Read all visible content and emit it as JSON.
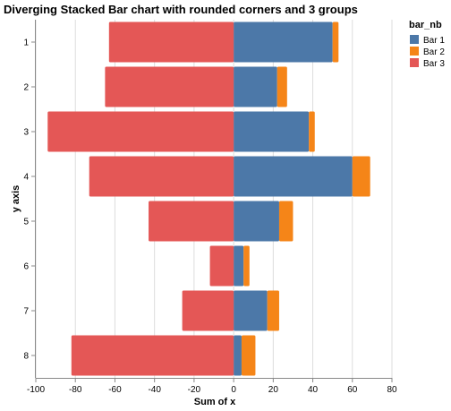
{
  "chart_data": {
    "type": "bar",
    "orientation": "horizontal",
    "stacked": "diverging",
    "title": "Diverging Stacked Bar chart with rounded corners and 3 groups",
    "xlabel": "Sum of x",
    "ylabel": "y axis",
    "xlim": [
      -100,
      80
    ],
    "x_ticks": [
      -100,
      -80,
      -60,
      -40,
      -20,
      0,
      20,
      40,
      60,
      80
    ],
    "categories": [
      "1",
      "2",
      "3",
      "4",
      "5",
      "6",
      "7",
      "8"
    ],
    "series": [
      {
        "name": "Bar 1",
        "color": "#4c78a8",
        "values": [
          50,
          22,
          38,
          60,
          23,
          5,
          17,
          4
        ]
      },
      {
        "name": "Bar 2",
        "color": "#f58518",
        "values": [
          3,
          5,
          3,
          9,
          7,
          3,
          6,
          7
        ]
      },
      {
        "name": "Bar 3",
        "color": "#e45756",
        "values": [
          -63,
          -65,
          -94,
          -73,
          -43,
          -12,
          -26,
          -82
        ]
      }
    ],
    "legend": {
      "title": "bar_nb",
      "position": "right"
    },
    "grid": true
  }
}
